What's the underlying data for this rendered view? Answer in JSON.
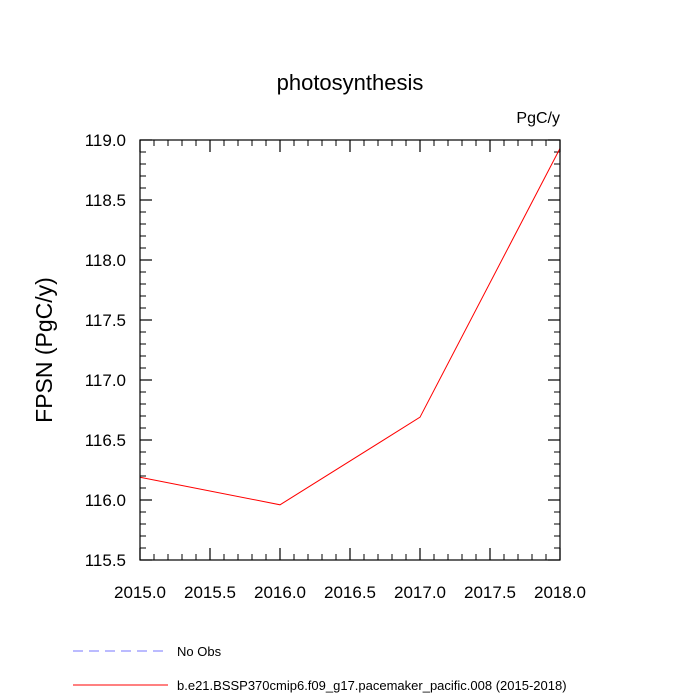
{
  "chart_data": {
    "type": "line",
    "title": "photosynthesis",
    "units_label": "PgC/y",
    "ylabel": "FPSN  (PgC/y)",
    "xlabel": "",
    "xlim": [
      2015.0,
      2018.0
    ],
    "ylim": [
      115.5,
      119.0
    ],
    "x_ticks": [
      2015.0,
      2015.5,
      2016.0,
      2016.5,
      2017.0,
      2017.5,
      2018.0
    ],
    "x_tick_labels": [
      "2015.0",
      "2015.5",
      "2016.0",
      "2016.5",
      "2017.0",
      "2017.5",
      "2018.0"
    ],
    "y_ticks": [
      115.5,
      116.0,
      116.5,
      117.0,
      117.5,
      118.0,
      118.5,
      119.0
    ],
    "y_tick_labels": [
      "115.5",
      "116.0",
      "116.5",
      "117.0",
      "117.5",
      "118.0",
      "118.5",
      "119.0"
    ],
    "x_minor_step": 0.1,
    "y_minor_step": 0.1,
    "grid": false,
    "series": [
      {
        "name": "b.e21.BSSP370cmip6.f09_g17.pacemaker_pacific.008 (2015-2018)",
        "color": "#ff0000",
        "style": "solid",
        "x": [
          2015.0,
          2016.0,
          2017.0,
          2018.0
        ],
        "values": [
          116.19,
          115.96,
          116.69,
          118.93
        ]
      }
    ],
    "legend": {
      "placement": "bottom-left",
      "entries": [
        {
          "label": "No Obs",
          "color": "#7777ff",
          "style": "dashed"
        },
        {
          "label": "b.e21.BSSP370cmip6.f09_g17.pacemaker_pacific.008 (2015-2018)",
          "color": "#ff0000",
          "style": "solid"
        }
      ]
    }
  }
}
